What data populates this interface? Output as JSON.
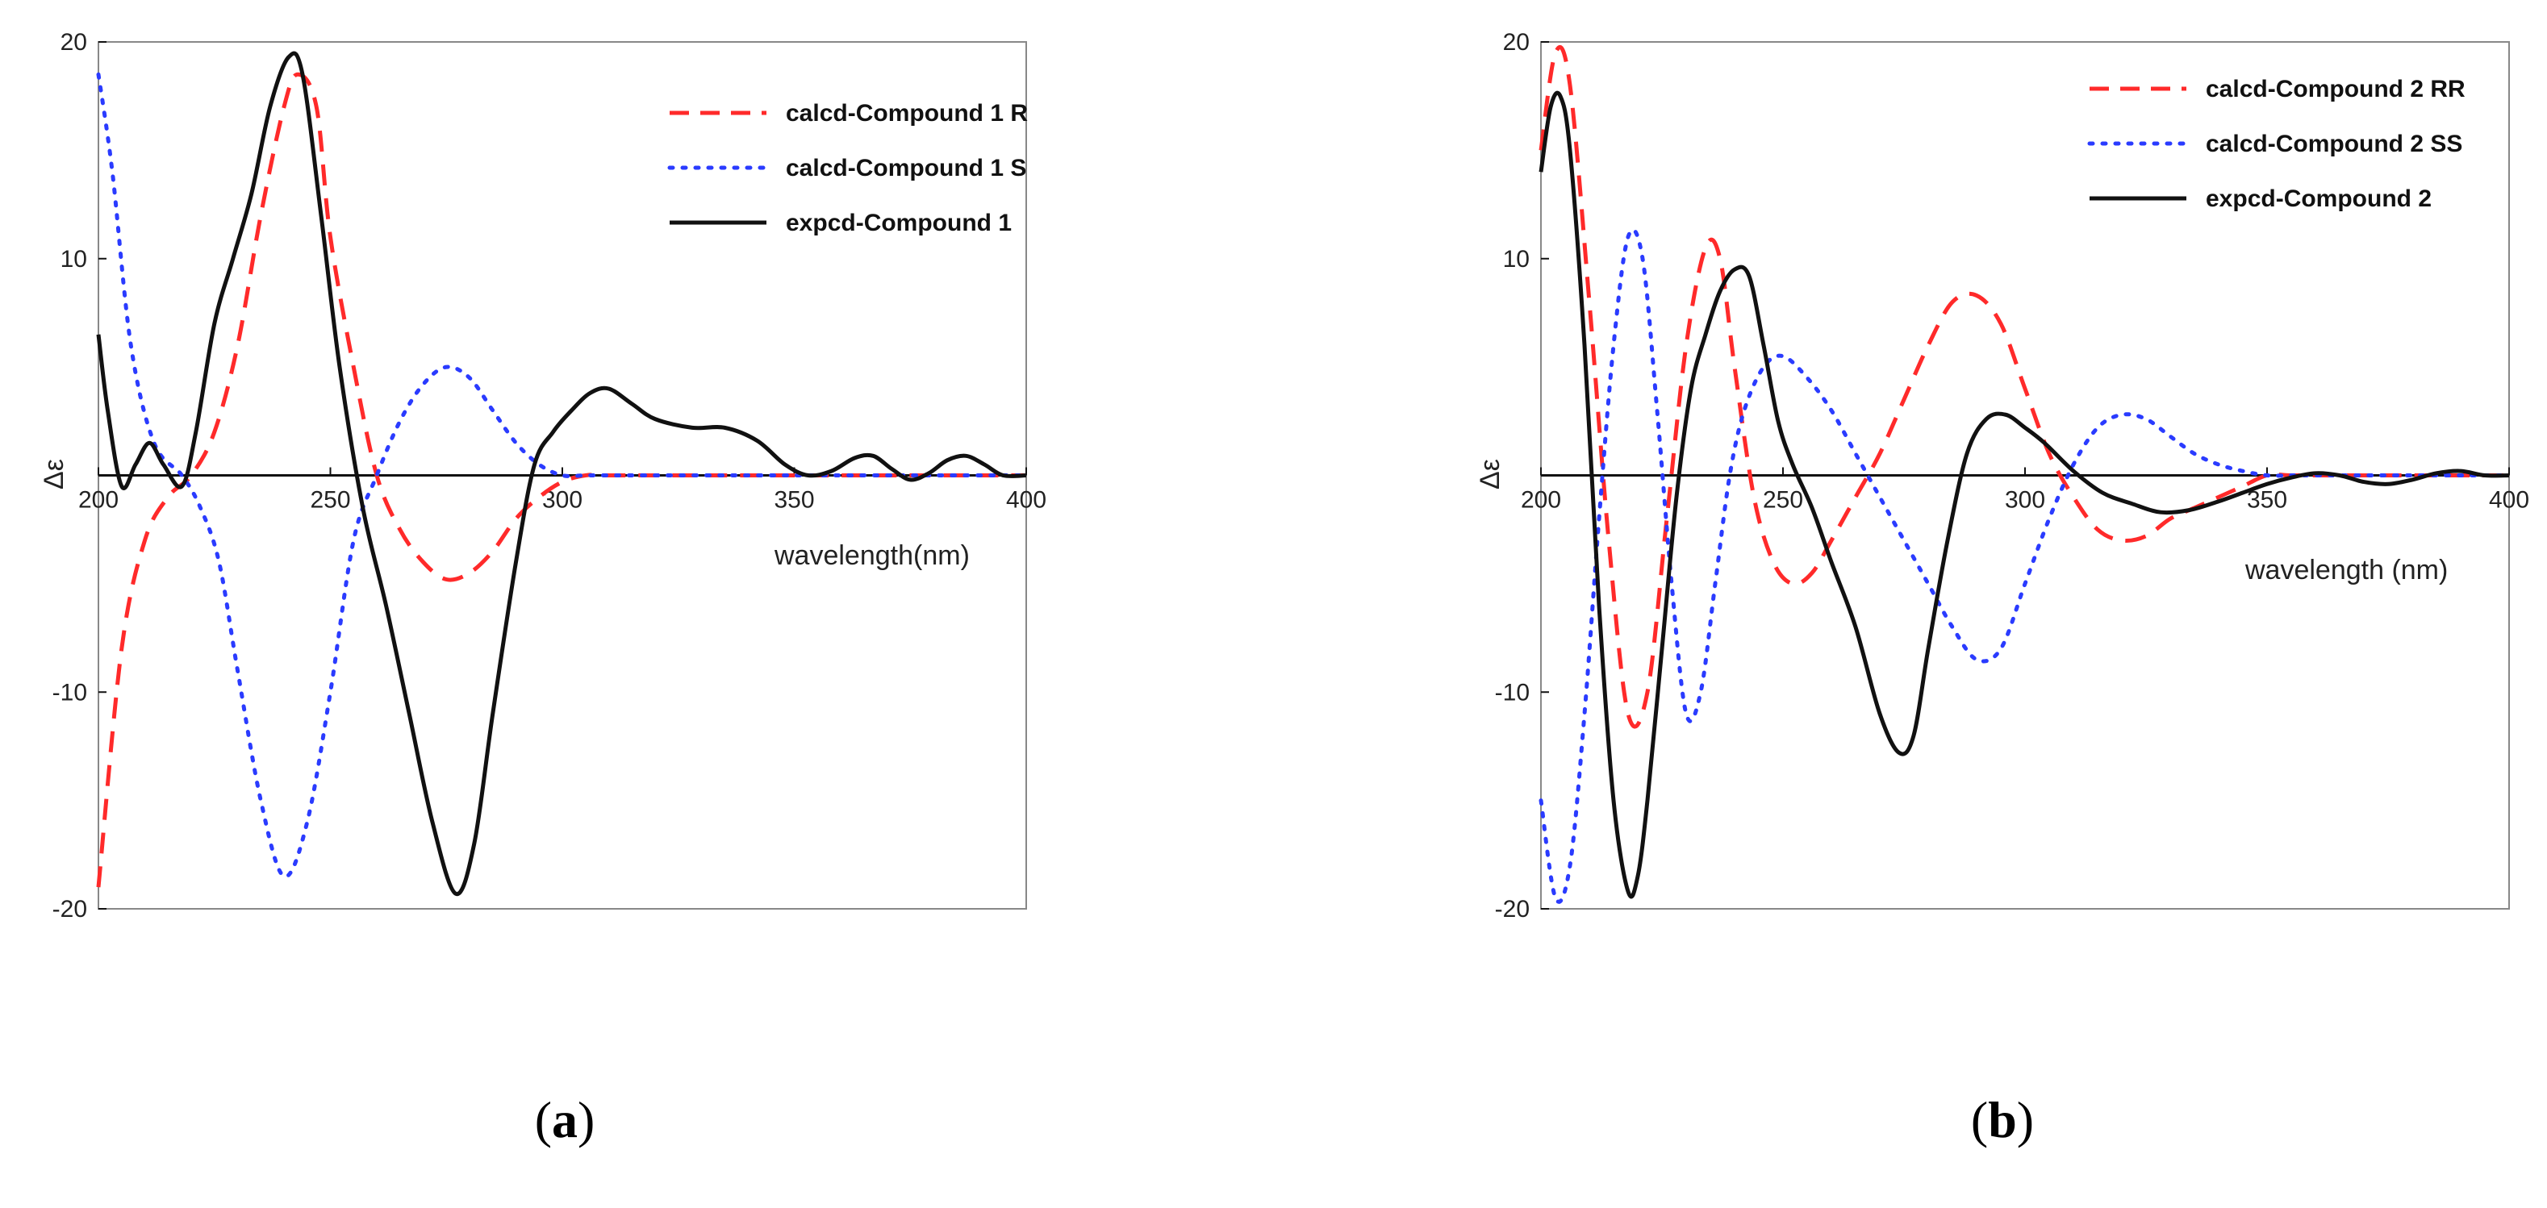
{
  "chart_data": [
    {
      "type": "line",
      "panel_label": "a",
      "xlabel": "wavelength(nm)",
      "ylabel": "Δε",
      "xlim": [
        200,
        400
      ],
      "ylim": [
        -20,
        20
      ],
      "xticks": [
        200,
        250,
        300,
        350,
        400
      ],
      "yticks": [
        -20,
        -10,
        10,
        20
      ],
      "tick_labels_x": [
        "200",
        "250",
        "300",
        "350",
        "400"
      ],
      "tick_labels_y": [
        "-20",
        "-10",
        "10",
        "20"
      ],
      "grid": false,
      "legend_position": "top-right",
      "series": [
        {
          "name": "calcd-Compound 1 R",
          "color": "#ff2a2a",
          "style": "dashed",
          "x": [
            200,
            205,
            210,
            215,
            220,
            225,
            230,
            235,
            240,
            243,
            247,
            250,
            255,
            260,
            265,
            270,
            275,
            280,
            285,
            290,
            295,
            300,
            305,
            310,
            320,
            350,
            400
          ],
          "y": [
            -19,
            -8,
            -3,
            -1,
            0,
            2,
            6,
            12,
            17,
            18.5,
            17,
            11,
            5,
            0,
            -2.5,
            -4,
            -4.8,
            -4.5,
            -3.5,
            -2,
            -1,
            -0.3,
            0,
            0,
            0,
            0,
            0
          ]
        },
        {
          "name": "calcd-Compound 1 S",
          "color": "#2a3bff",
          "style": "dotted",
          "x": [
            200,
            203,
            207,
            212,
            218,
            222,
            226,
            230,
            235,
            240,
            245,
            250,
            255,
            260,
            265,
            270,
            275,
            280,
            285,
            290,
            295,
            300,
            305,
            310,
            320,
            350,
            400
          ],
          "y": [
            18.5,
            14,
            6,
            1.5,
            0,
            -1.5,
            -4,
            -9,
            -15,
            -18.5,
            -16,
            -10,
            -3,
            0,
            2.5,
            4.2,
            5,
            4.5,
            3,
            1.5,
            0.5,
            0,
            0,
            0,
            0,
            0,
            0
          ]
        },
        {
          "name": "expcd-Compound 1",
          "color": "#111111",
          "style": "solid",
          "x": [
            200,
            202,
            205,
            208,
            211,
            214,
            218,
            221,
            225,
            229,
            233,
            237,
            241,
            244,
            248,
            252,
            257,
            262,
            267,
            272,
            277,
            281,
            285,
            290,
            294,
            298,
            302,
            306,
            310,
            315,
            320,
            328,
            335,
            342,
            348,
            353,
            358,
            363,
            367,
            371,
            375,
            379,
            383,
            387,
            391,
            395,
            400
          ],
          "y": [
            6.5,
            3,
            -0.5,
            0.5,
            1.5,
            0.5,
            -0.5,
            2,
            7,
            10,
            13,
            17,
            19.3,
            18.5,
            12,
            5,
            -1.5,
            -6,
            -11,
            -16,
            -19.3,
            -17,
            -11,
            -4,
            0.5,
            2,
            3,
            3.8,
            4,
            3.3,
            2.6,
            2.2,
            2.2,
            1.6,
            0.5,
            0,
            0.2,
            0.8,
            0.9,
            0.3,
            -0.2,
            0.1,
            0.7,
            0.9,
            0.5,
            0,
            0
          ]
        }
      ]
    },
    {
      "type": "line",
      "panel_label": "b",
      "xlabel": "wavelength (nm)",
      "ylabel": "Δε",
      "xlim": [
        200,
        400
      ],
      "ylim": [
        -20,
        20
      ],
      "xticks": [
        200,
        250,
        300,
        350,
        400
      ],
      "yticks": [
        -20,
        -10,
        10,
        20
      ],
      "tick_labels_x": [
        "200",
        "250",
        "300",
        "350",
        "400"
      ],
      "tick_labels_y": [
        "-20",
        "-10",
        "10",
        "20"
      ],
      "grid": false,
      "legend_position": "top-right",
      "series": [
        {
          "name": "calcd-Compound 2 RR",
          "color": "#ff2a2a",
          "style": "dashed",
          "x": [
            200,
            203,
            206,
            210,
            214,
            218,
            222,
            226,
            230,
            234,
            237,
            240,
            244,
            248,
            252,
            256,
            260,
            265,
            270,
            275,
            280,
            285,
            290,
            295,
            300,
            305,
            310,
            315,
            320,
            325,
            330,
            335,
            340,
            345,
            350,
            355,
            360,
            370,
            380,
            400
          ],
          "y": [
            15,
            19.5,
            18,
            8,
            -3,
            -11,
            -10,
            -2,
            6,
            10.5,
            10,
            5,
            -1,
            -4,
            -5,
            -4.5,
            -3,
            -1,
            1,
            3.5,
            6,
            8,
            8.3,
            7,
            4,
            1,
            -1,
            -2.5,
            -3,
            -2.8,
            -2,
            -1.5,
            -1,
            -0.5,
            0,
            0,
            0,
            0,
            0,
            0
          ]
        },
        {
          "name": "calcd-Compound 2 SS",
          "color": "#2a3bff",
          "style": "dotted",
          "x": [
            200,
            203,
            206,
            209,
            212,
            215,
            218,
            221,
            224,
            227,
            230,
            233,
            236,
            239,
            242,
            246,
            250,
            255,
            260,
            265,
            270,
            275,
            280,
            285,
            290,
            295,
            300,
            305,
            310,
            315,
            320,
            325,
            330,
            335,
            340,
            345,
            350,
            355,
            360,
            370,
            380,
            400
          ],
          "y": [
            -15,
            -19.5,
            -18,
            -11,
            -2,
            6,
            11,
            10,
            3,
            -5,
            -11,
            -10,
            -5,
            0,
            3,
            5,
            5.5,
            4.5,
            3,
            1,
            -1,
            -3,
            -5,
            -7,
            -8.5,
            -8,
            -5,
            -2,
            0.5,
            2.2,
            2.8,
            2.6,
            1.8,
            1,
            0.5,
            0.2,
            0,
            0,
            0,
            0,
            0,
            0
          ]
        },
        {
          "name": "expcd-Compound 2",
          "color": "#111111",
          "style": "solid",
          "x": [
            200,
            202,
            204,
            206,
            209,
            212,
            215,
            218,
            220,
            222,
            225,
            228,
            231,
            234,
            237,
            240,
            243,
            246,
            249,
            252,
            256,
            260,
            265,
            270,
            274,
            277,
            280,
            284,
            288,
            292,
            296,
            300,
            304,
            310,
            316,
            322,
            328,
            334,
            340,
            345,
            350,
            355,
            360,
            365,
            370,
            375,
            380,
            385,
            390,
            395,
            400
          ],
          "y": [
            14,
            17,
            17.5,
            15,
            6,
            -6,
            -15,
            -19.2,
            -18.5,
            -15,
            -8,
            -1,
            4,
            6.5,
            8.5,
            9.5,
            9.2,
            6,
            2.5,
            0.5,
            -1.5,
            -4,
            -7,
            -11,
            -12.8,
            -12,
            -8,
            -3,
            1,
            2.6,
            2.8,
            2.2,
            1.5,
            0.2,
            -0.8,
            -1.3,
            -1.7,
            -1.6,
            -1.2,
            -0.8,
            -0.4,
            -0.1,
            0.1,
            0,
            -0.3,
            -0.4,
            -0.2,
            0.1,
            0.2,
            0,
            0
          ]
        }
      ]
    }
  ]
}
